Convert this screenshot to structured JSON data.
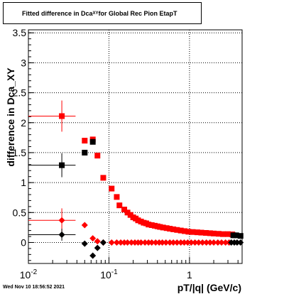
{
  "title": {
    "main": "Fitted difference in Dca",
    "sub": "XY",
    "suffix": " for Global Rec Pion EtapT"
  },
  "footer": {
    "datestamp": "Wed Nov 10 18:56:52 2021"
  },
  "colors": {
    "red": "#ff0000",
    "black": "#000000",
    "grid": "#000000"
  },
  "chart_data": {
    "type": "scatter",
    "title": "Fitted difference in Dca_XY for Global Rec Pion EtapT",
    "xlabel": "pT/|q| (GeV/c)",
    "ylabel": "difference in Dca_XY",
    "x_scale": "log",
    "xlim": [
      0.01,
      4.5
    ],
    "ylim": [
      -0.35,
      3.55
    ],
    "grid": true,
    "x_ticks": [
      {
        "value": 0.01,
        "base": "10",
        "exp": "-2"
      },
      {
        "value": 0.1,
        "base": "10",
        "exp": "-1"
      },
      {
        "value": 1,
        "base": "1",
        "exp": ""
      }
    ],
    "y_ticks": [
      "0",
      "0.5",
      "1",
      "1.5",
      "2",
      "2.5",
      "3",
      "3.5"
    ],
    "series": [
      {
        "color": "red",
        "marker": "square",
        "points": [
          [
            0.026,
            2.11
          ],
          [
            0.05,
            1.7
          ],
          [
            0.063,
            1.72
          ],
          [
            0.072,
            1.45
          ],
          [
            0.085,
            1.08
          ],
          [
            0.108,
            0.9
          ],
          [
            0.125,
            0.76
          ],
          [
            0.135,
            0.62
          ],
          [
            0.155,
            0.55
          ],
          [
            0.17,
            0.5
          ],
          [
            0.185,
            0.46
          ],
          [
            0.2,
            0.42
          ],
          [
            0.215,
            0.4
          ],
          [
            0.23,
            0.37
          ],
          [
            0.25,
            0.35
          ],
          [
            0.27,
            0.33
          ],
          [
            0.29,
            0.32
          ],
          [
            0.31,
            0.3
          ],
          [
            0.34,
            0.29
          ],
          [
            0.37,
            0.28
          ],
          [
            0.4,
            0.27
          ],
          [
            0.43,
            0.26
          ],
          [
            0.47,
            0.25
          ],
          [
            0.52,
            0.24
          ],
          [
            0.57,
            0.23
          ],
          [
            0.63,
            0.22
          ],
          [
            0.7,
            0.21
          ],
          [
            0.78,
            0.2
          ],
          [
            0.87,
            0.19
          ],
          [
            0.97,
            0.18
          ],
          [
            1.1,
            0.175
          ],
          [
            1.25,
            0.17
          ],
          [
            1.4,
            0.165
          ],
          [
            1.6,
            0.16
          ],
          [
            1.8,
            0.155
          ],
          [
            2.0,
            0.15
          ],
          [
            2.3,
            0.145
          ],
          [
            2.6,
            0.14
          ],
          [
            3.0,
            0.14
          ],
          [
            3.4,
            0.135
          ]
        ],
        "xerr": {
          "0": [
            0.01,
            0.0385
          ]
        },
        "yerr": {
          "0": 0.26
        }
      },
      {
        "color": "black",
        "marker": "square",
        "points": [
          [
            0.026,
            1.29
          ],
          [
            0.05,
            1.5
          ],
          [
            0.063,
            1.68
          ],
          [
            3.5,
            0.12
          ],
          [
            3.8,
            0.12
          ],
          [
            4.3,
            0.11
          ]
        ],
        "xerr": {
          "0": [
            0.01,
            0.0385
          ]
        },
        "yerr": {
          "0": 0.2
        }
      },
      {
        "color": "red",
        "marker": "diamond",
        "points": [
          [
            0.026,
            0.37
          ],
          [
            0.05,
            0.29
          ],
          [
            0.063,
            0.07
          ],
          [
            0.072,
            0.02
          ],
          [
            0.085,
            0.0
          ],
          [
            0.108,
            0.0
          ],
          [
            0.125,
            0.0
          ],
          [
            0.14,
            0.0
          ],
          [
            0.155,
            0.0
          ],
          [
            0.17,
            0.0
          ],
          [
            0.19,
            0.0
          ],
          [
            0.21,
            0.0
          ],
          [
            0.23,
            0.0
          ],
          [
            0.25,
            0.0
          ],
          [
            0.28,
            0.0
          ],
          [
            0.31,
            0.0
          ],
          [
            0.34,
            0.0
          ],
          [
            0.38,
            0.0
          ],
          [
            0.42,
            0.0
          ],
          [
            0.46,
            0.0
          ],
          [
            0.51,
            0.0
          ],
          [
            0.57,
            0.0
          ],
          [
            0.63,
            0.0
          ],
          [
            0.7,
            0.0
          ],
          [
            0.78,
            0.0
          ],
          [
            0.86,
            0.0
          ],
          [
            0.95,
            0.0
          ],
          [
            1.05,
            0.0
          ],
          [
            1.17,
            0.0
          ],
          [
            1.3,
            0.0
          ],
          [
            1.45,
            0.0
          ],
          [
            1.62,
            0.0
          ],
          [
            1.8,
            0.0
          ],
          [
            2.0,
            0.0
          ],
          [
            2.25,
            0.0
          ],
          [
            2.5,
            0.0
          ],
          [
            2.8,
            0.0
          ],
          [
            3.1,
            0.0
          ]
        ],
        "xerr": {
          "0": [
            0.01,
            0.0385
          ]
        },
        "yerr": {
          "0": 0.2
        }
      },
      {
        "color": "black",
        "marker": "diamond",
        "points": [
          [
            0.026,
            0.13
          ],
          [
            0.05,
            -0.02
          ],
          [
            0.063,
            -0.22
          ],
          [
            0.072,
            -0.09
          ],
          [
            0.085,
            0.0
          ],
          [
            3.3,
            0.0
          ],
          [
            3.6,
            0.0
          ],
          [
            3.9,
            0.0
          ],
          [
            4.3,
            0.0
          ]
        ],
        "xerr": {
          "0": [
            0.01,
            0.0385
          ]
        },
        "yerr": {
          "0": 0.1
        }
      }
    ]
  }
}
